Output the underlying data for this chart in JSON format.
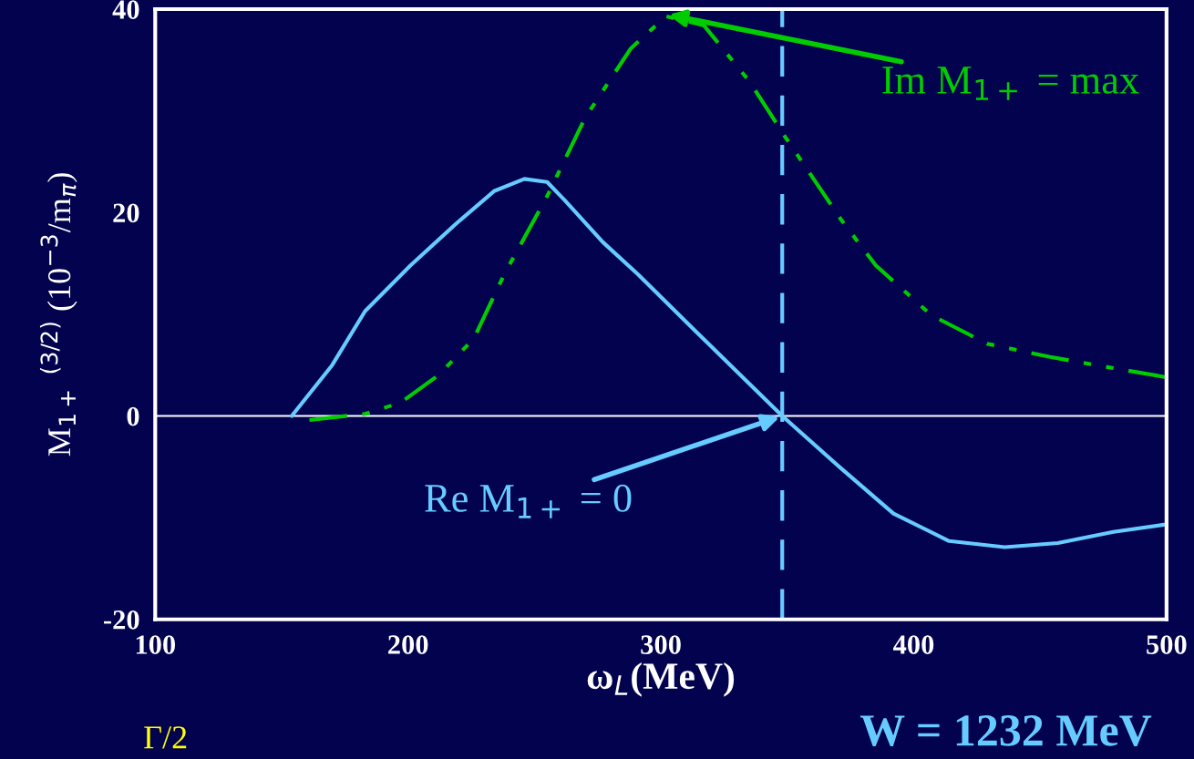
{
  "chart_data": {
    "type": "line",
    "xlabel": "ω$_{L}$(MeV)",
    "ylabel": "M$_{1+}$ $^{(3/2)}$ (10$^{−3}$/m$_{π}$)",
    "xlim": [
      100,
      500
    ],
    "ylim": [
      -20,
      40
    ],
    "xticks": [
      100,
      200,
      300,
      400,
      500
    ],
    "yticks": [
      -20,
      0,
      20,
      40
    ],
    "grid": false,
    "legend": false,
    "series": [
      {
        "color": "#66ccff",
        "line_style": "solid",
        "x": [
          154,
          170,
          183,
          201,
          219,
          234,
          246,
          255,
          262,
          277,
          291,
          313,
          348,
          371,
          392,
          414,
          436,
          457,
          479,
          499
        ],
        "values": [
          0,
          5,
          10.3,
          14.8,
          18.9,
          22.1,
          23.3,
          23,
          21.2,
          17.1,
          13.9,
          8.5,
          0,
          -5.1,
          -9.6,
          -12.3,
          -12.9,
          -12.5,
          -11.4,
          -10.7
        ]
      },
      {
        "color": "#00cc00",
        "line_style": "dashed",
        "x": [
          161,
          183,
          197,
          212,
          226,
          238,
          255,
          270,
          288,
          302,
          317,
          335,
          349,
          371,
          385,
          407,
          429,
          454,
          479,
          500
        ],
        "values": [
          -0.4,
          0.2,
          1.3,
          4.0,
          7.6,
          13.9,
          21.6,
          29.3,
          36.1,
          39.3,
          38.4,
          32.9,
          27.5,
          19.4,
          14.8,
          9.9,
          7.1,
          5.8,
          4.7,
          3.8
        ]
      }
    ],
    "ref_lines": [
      {
        "axis": "y",
        "value": 0,
        "color": "#ffffff",
        "line_style": "solid"
      },
      {
        "axis": "x",
        "value": 348,
        "color": "#66ccff",
        "line_style": "dashed"
      }
    ],
    "annotations": [
      {
        "text": "Im M$_{1+}$ = max",
        "x": 302,
        "y": 39.5
      },
      {
        "text": "Re M$_{1+}$ = 0",
        "x": 348,
        "y": 0
      },
      "W = 1232 MeV",
      "Γ/2"
    ]
  }
}
